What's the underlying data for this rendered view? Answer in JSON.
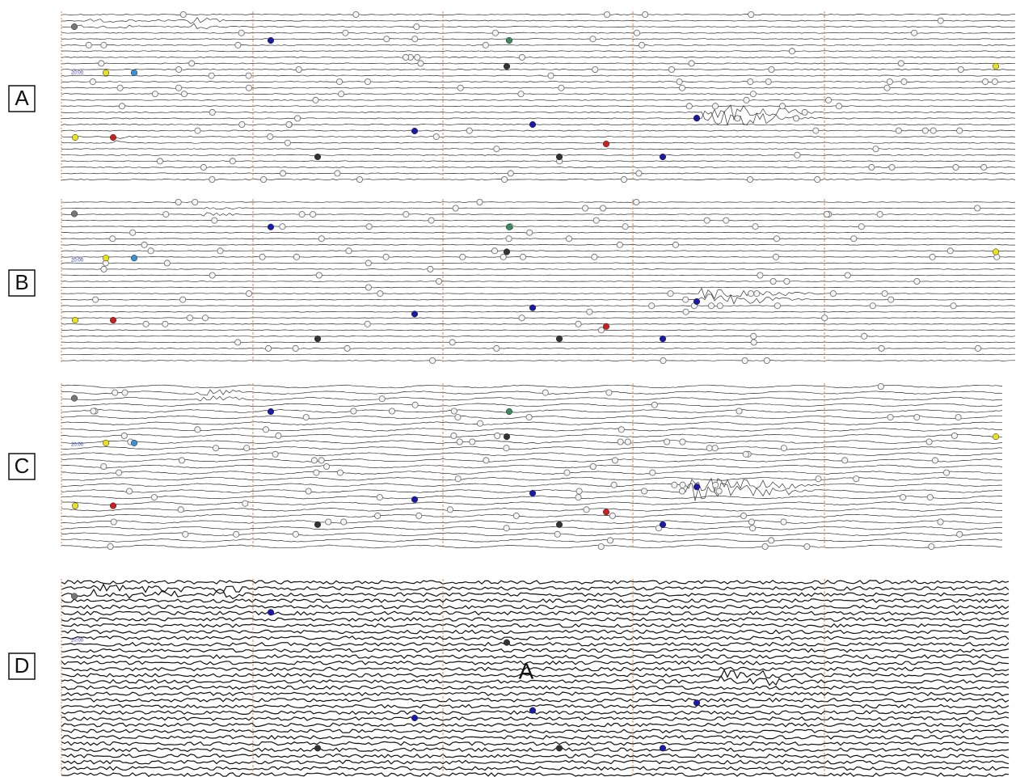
{
  "panels": [
    {
      "label": "A",
      "time_label": "20:00"
    },
    {
      "label": "B",
      "time_label": "20:00"
    },
    {
      "label": "C",
      "time_label": "20:00"
    },
    {
      "label": "D",
      "time_label": "20:00"
    }
  ],
  "annotation": "A"
}
